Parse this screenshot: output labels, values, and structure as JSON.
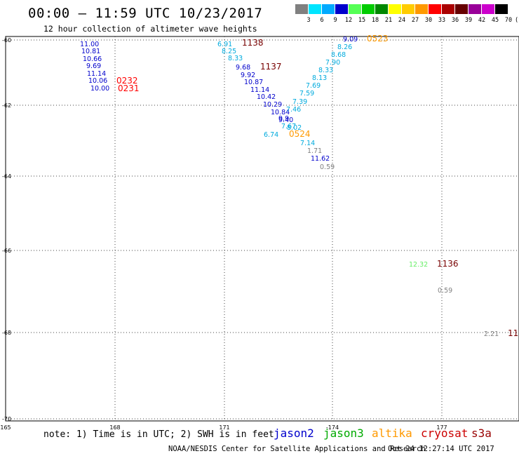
{
  "title": "00:00 – 11:59 UTC 10/23/2017",
  "subtitle": "12 hour collection of altimeter wave heights",
  "legend": {
    "colors": [
      "#808080",
      "#00e5ff",
      "#00aaff",
      "#0000cc",
      "#55ff55",
      "#00cc00",
      "#008800",
      "#ffff00",
      "#ffcc00",
      "#ff9900",
      "#ff0000",
      "#aa0000",
      "#660000",
      "#990099",
      "#cc00cc",
      "#000000"
    ],
    "labels": [
      "3",
      "6",
      "9",
      "12",
      "15",
      "18",
      "21",
      "24",
      "27",
      "30",
      "33",
      "36",
      "39",
      "42",
      "45",
      "70",
      "(ft)"
    ]
  },
  "y_labels": [
    "-60",
    "-62",
    "-64",
    "-66",
    "-68",
    "-70"
  ],
  "x_labels": [
    "165",
    "168",
    "171",
    "-174",
    "177"
  ],
  "obs_colors": {
    "blue": "#0000cc",
    "cyan": "#00aadd",
    "grey": "#808080",
    "light_green": "#66ee66",
    "orange": "#ff9900",
    "red": "#ff0000",
    "dark_red": "#770000"
  },
  "observations": [
    {
      "t": "11.00",
      "c": "blue"
    },
    {
      "t": "10.81",
      "c": "blue"
    },
    {
      "t": "10.66",
      "c": "blue"
    },
    {
      "t": "9.69",
      "c": "blue"
    },
    {
      "t": "11.14",
      "c": "blue"
    },
    {
      "t": "10.06",
      "c": "blue"
    },
    {
      "t": "10.00",
      "c": "blue"
    },
    {
      "t": "0232",
      "c": "red"
    },
    {
      "t": "0231",
      "c": "red"
    },
    {
      "t": "6.91",
      "c": "cyan"
    },
    {
      "t": "8.25",
      "c": "cyan"
    },
    {
      "t": "8.33",
      "c": "cyan"
    },
    {
      "t": "1138",
      "c": "dark_red"
    },
    {
      "t": "1137",
      "c": "dark_red"
    },
    {
      "t": "9.68",
      "c": "blue"
    },
    {
      "t": "9.92",
      "c": "blue"
    },
    {
      "t": "10.87",
      "c": "blue"
    },
    {
      "t": "11.14",
      "c": "blue"
    },
    {
      "t": "10.42",
      "c": "blue"
    },
    {
      "t": "10.29",
      "c": "blue"
    },
    {
      "t": "10.84",
      "c": "blue"
    },
    {
      "t": "9.9",
      "c": "blue"
    },
    {
      "t": "9.40",
      "c": "blue"
    },
    {
      "t": "9.09",
      "c": "blue"
    },
    {
      "t": "0523",
      "c": "orange"
    },
    {
      "t": "8.26",
      "c": "cyan"
    },
    {
      "t": "8.68",
      "c": "cyan"
    },
    {
      "t": "7.90",
      "c": "cyan"
    },
    {
      "t": "8.33",
      "c": "cyan"
    },
    {
      "t": "8.13",
      "c": "cyan"
    },
    {
      "t": "7.69",
      "c": "cyan"
    },
    {
      "t": "7.59",
      "c": "cyan"
    },
    {
      "t": "7.39",
      "c": "cyan"
    },
    {
      "t": "7.46",
      "c": "cyan"
    },
    {
      "t": "7.67",
      "c": "cyan"
    },
    {
      "t": "8.02",
      "c": "cyan"
    },
    {
      "t": "6.74",
      "c": "cyan"
    },
    {
      "t": "0524",
      "c": "orange"
    },
    {
      "t": "7.14",
      "c": "cyan"
    },
    {
      "t": "1.71",
      "c": "grey"
    },
    {
      "t": "11.62",
      "c": "blue"
    },
    {
      "t": "0.59",
      "c": "grey"
    },
    {
      "t": "12.32",
      "c": "light_green"
    },
    {
      "t": "1136",
      "c": "dark_red"
    },
    {
      "t": "0.59",
      "c": "grey"
    },
    {
      "t": "2.21",
      "c": "grey"
    },
    {
      "t": "11",
      "c": "dark_red"
    }
  ],
  "footer": {
    "note": "note: 1) Time is in UTC; 2) SWH is in feet",
    "satellites": [
      {
        "name": "jason2",
        "color": "#0000cc"
      },
      {
        "name": "jason3",
        "color": "#00aa00"
      },
      {
        "name": "altika",
        "color": "#ff9900"
      },
      {
        "name": "cryosat",
        "color": "#cc0000"
      },
      {
        "name": "s3a",
        "color": "#990000"
      }
    ],
    "credit": "NOAA/NESDIS Center for Satellite Applications and Research",
    "date": "Oct 24 12:27:14 UTC 2017"
  }
}
